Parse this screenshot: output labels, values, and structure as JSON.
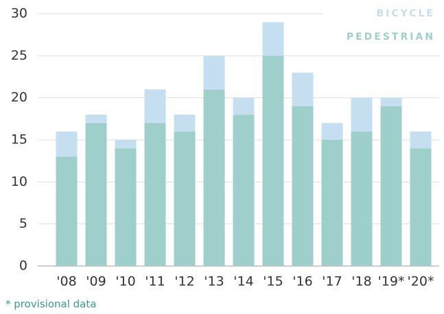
{
  "chart_data": {
    "type": "stacked_bar",
    "categories": [
      "'08",
      "'09",
      "'10",
      "'11",
      "'12",
      "'13",
      "'14",
      "'15",
      "'16",
      "'17",
      "'18",
      "'19*",
      "'20*"
    ],
    "series": [
      {
        "name": "PEDESTRIAN",
        "color": "#9fcfca",
        "values": [
          13,
          17,
          14,
          17,
          16,
          21,
          18,
          25,
          19,
          15,
          16,
          19,
          14
        ]
      },
      {
        "name": "BICYCLE",
        "color": "#c6dff0",
        "values": [
          3,
          1,
          1,
          4,
          2,
          4,
          2,
          4,
          4,
          2,
          4,
          1,
          2
        ]
      }
    ],
    "ylim": [
      0,
      30
    ],
    "yticks": [
      0,
      5,
      10,
      15,
      20,
      25,
      30
    ],
    "grid": true,
    "legend": "top-right",
    "footnote": "* provisional data"
  }
}
